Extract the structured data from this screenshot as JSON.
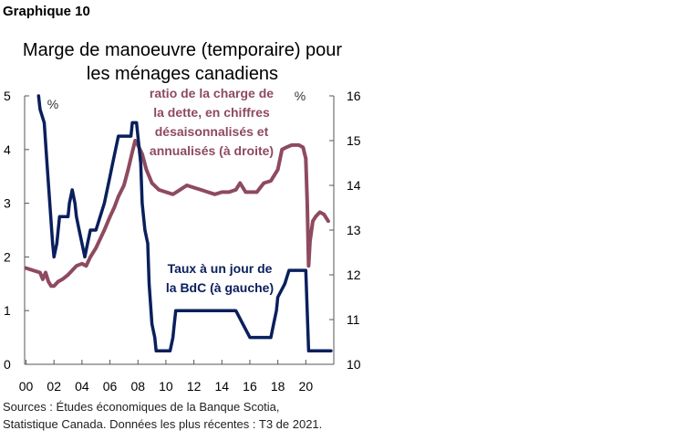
{
  "header": {
    "label": "Graphique 10",
    "title_line1": "Marge de manoeuvre (temporaire) pour",
    "title_line2": "les ménages canadiens"
  },
  "footer": {
    "sources_line1": "Sources : Études économiques de la Banque Scotia,",
    "sources_line2": "Statistique Canada. Données les plus récentes : T3 de 2021."
  },
  "chart_data": {
    "type": "line",
    "title": "Marge de manoeuvre (temporaire) pour les ménages canadiens",
    "x_ticks": [
      "00",
      "02",
      "04",
      "06",
      "08",
      "10",
      "12",
      "14",
      "16",
      "18",
      "20"
    ],
    "x_range": [
      1999.9,
      2022.0
    ],
    "left_axis": {
      "unit": "%",
      "range": [
        0,
        5
      ],
      "ticks": [
        "0",
        "1",
        "2",
        "3",
        "4",
        "5"
      ]
    },
    "right_axis": {
      "unit": "%",
      "range": [
        10,
        16
      ],
      "ticks": [
        "10",
        "11",
        "12",
        "13",
        "14",
        "15",
        "16"
      ]
    },
    "grid": false,
    "colors": {
      "rate": "#0a1f5c",
      "debt": "#8e4a5e"
    },
    "annotations": {
      "debt_lines": [
        "ratio de la charge de",
        "la dette, en chiffres",
        "désaisonnalisés et",
        "annualisés (à droite)"
      ],
      "rate_lines": [
        "Taux à un jour de",
        "la BdC (à gauche)"
      ]
    },
    "series": [
      {
        "name": "Taux à un jour de la BdC (à gauche)",
        "axis": "left",
        "x": [
          2000.9,
          2001.0,
          2001.3,
          2001.5,
          2001.7,
          2001.9,
          2002.0,
          2002.2,
          2002.3,
          2002.4,
          2002.6,
          2002.8,
          2003.0,
          2003.1,
          2003.3,
          2003.5,
          2003.6,
          2003.8,
          2004.0,
          2004.2,
          2004.4,
          2004.6,
          2004.8,
          2005.0,
          2005.3,
          2005.6,
          2005.8,
          2006.0,
          2006.2,
          2006.4,
          2006.6,
          2007.0,
          2007.5,
          2007.6,
          2007.9,
          2008.0,
          2008.2,
          2008.3,
          2008.5,
          2008.7,
          2008.8,
          2009.0,
          2009.2,
          2009.3,
          2010.3,
          2010.5,
          2010.6,
          2010.7,
          2010.9,
          2015.0,
          2015.5,
          2016.0,
          2017.5,
          2017.7,
          2017.9,
          2018.0,
          2018.5,
          2018.8,
          2018.9,
          2020.0,
          2020.2,
          2021.8
        ],
        "y": [
          5.0,
          4.75,
          4.5,
          3.75,
          3.0,
          2.25,
          2.0,
          2.25,
          2.5,
          2.75,
          2.75,
          2.75,
          2.75,
          3.0,
          3.25,
          3.0,
          2.75,
          2.5,
          2.25,
          2.0,
          2.25,
          2.5,
          2.5,
          2.5,
          2.75,
          3.0,
          3.25,
          3.5,
          3.75,
          4.0,
          4.25,
          4.25,
          4.25,
          4.5,
          4.5,
          4.25,
          3.75,
          3.0,
          2.5,
          2.25,
          1.5,
          0.75,
          0.5,
          0.25,
          0.25,
          0.5,
          0.75,
          1.0,
          1.0,
          1.0,
          0.75,
          0.5,
          0.5,
          0.75,
          1.0,
          1.25,
          1.5,
          1.75,
          1.75,
          1.75,
          0.25,
          0.25
        ]
      },
      {
        "name": "Ratio de la charge de la dette (à droite)",
        "axis": "right",
        "x": [
          2000.0,
          2000.5,
          2001.0,
          2001.2,
          2001.4,
          2001.6,
          2001.8,
          2002.0,
          2002.3,
          2002.6,
          2003.0,
          2003.3,
          2003.6,
          2004.0,
          2004.3,
          2004.6,
          2005.0,
          2005.3,
          2005.6,
          2006.0,
          2006.3,
          2006.6,
          2007.0,
          2007.3,
          2007.6,
          2007.8,
          2008.0,
          2008.3,
          2008.6,
          2009.0,
          2009.5,
          2010.0,
          2010.5,
          2011.0,
          2011.5,
          2012.0,
          2012.5,
          2013.0,
          2013.5,
          2014.0,
          2014.5,
          2015.0,
          2015.3,
          2015.7,
          2016.0,
          2016.5,
          2017.0,
          2017.5,
          2018.0,
          2018.3,
          2018.6,
          2019.0,
          2019.5,
          2019.8,
          2020.0,
          2020.1,
          2020.2,
          2020.3,
          2020.5,
          2020.7,
          2021.0,
          2021.3,
          2021.6
        ],
        "y": [
          12.15,
          12.1,
          12.05,
          11.9,
          12.05,
          11.85,
          11.75,
          11.75,
          11.85,
          11.9,
          12.0,
          12.1,
          12.2,
          12.25,
          12.2,
          12.4,
          12.6,
          12.8,
          13.0,
          13.3,
          13.5,
          13.75,
          14.0,
          14.35,
          14.75,
          15.0,
          14.9,
          14.7,
          14.35,
          14.05,
          13.9,
          13.85,
          13.8,
          13.9,
          14.0,
          13.95,
          13.9,
          13.85,
          13.8,
          13.85,
          13.85,
          13.9,
          14.05,
          13.85,
          13.85,
          13.85,
          14.05,
          14.1,
          14.35,
          14.8,
          14.85,
          14.9,
          14.9,
          14.85,
          14.6,
          13.6,
          12.2,
          12.75,
          13.2,
          13.3,
          13.4,
          13.35,
          13.2
        ]
      }
    ]
  }
}
